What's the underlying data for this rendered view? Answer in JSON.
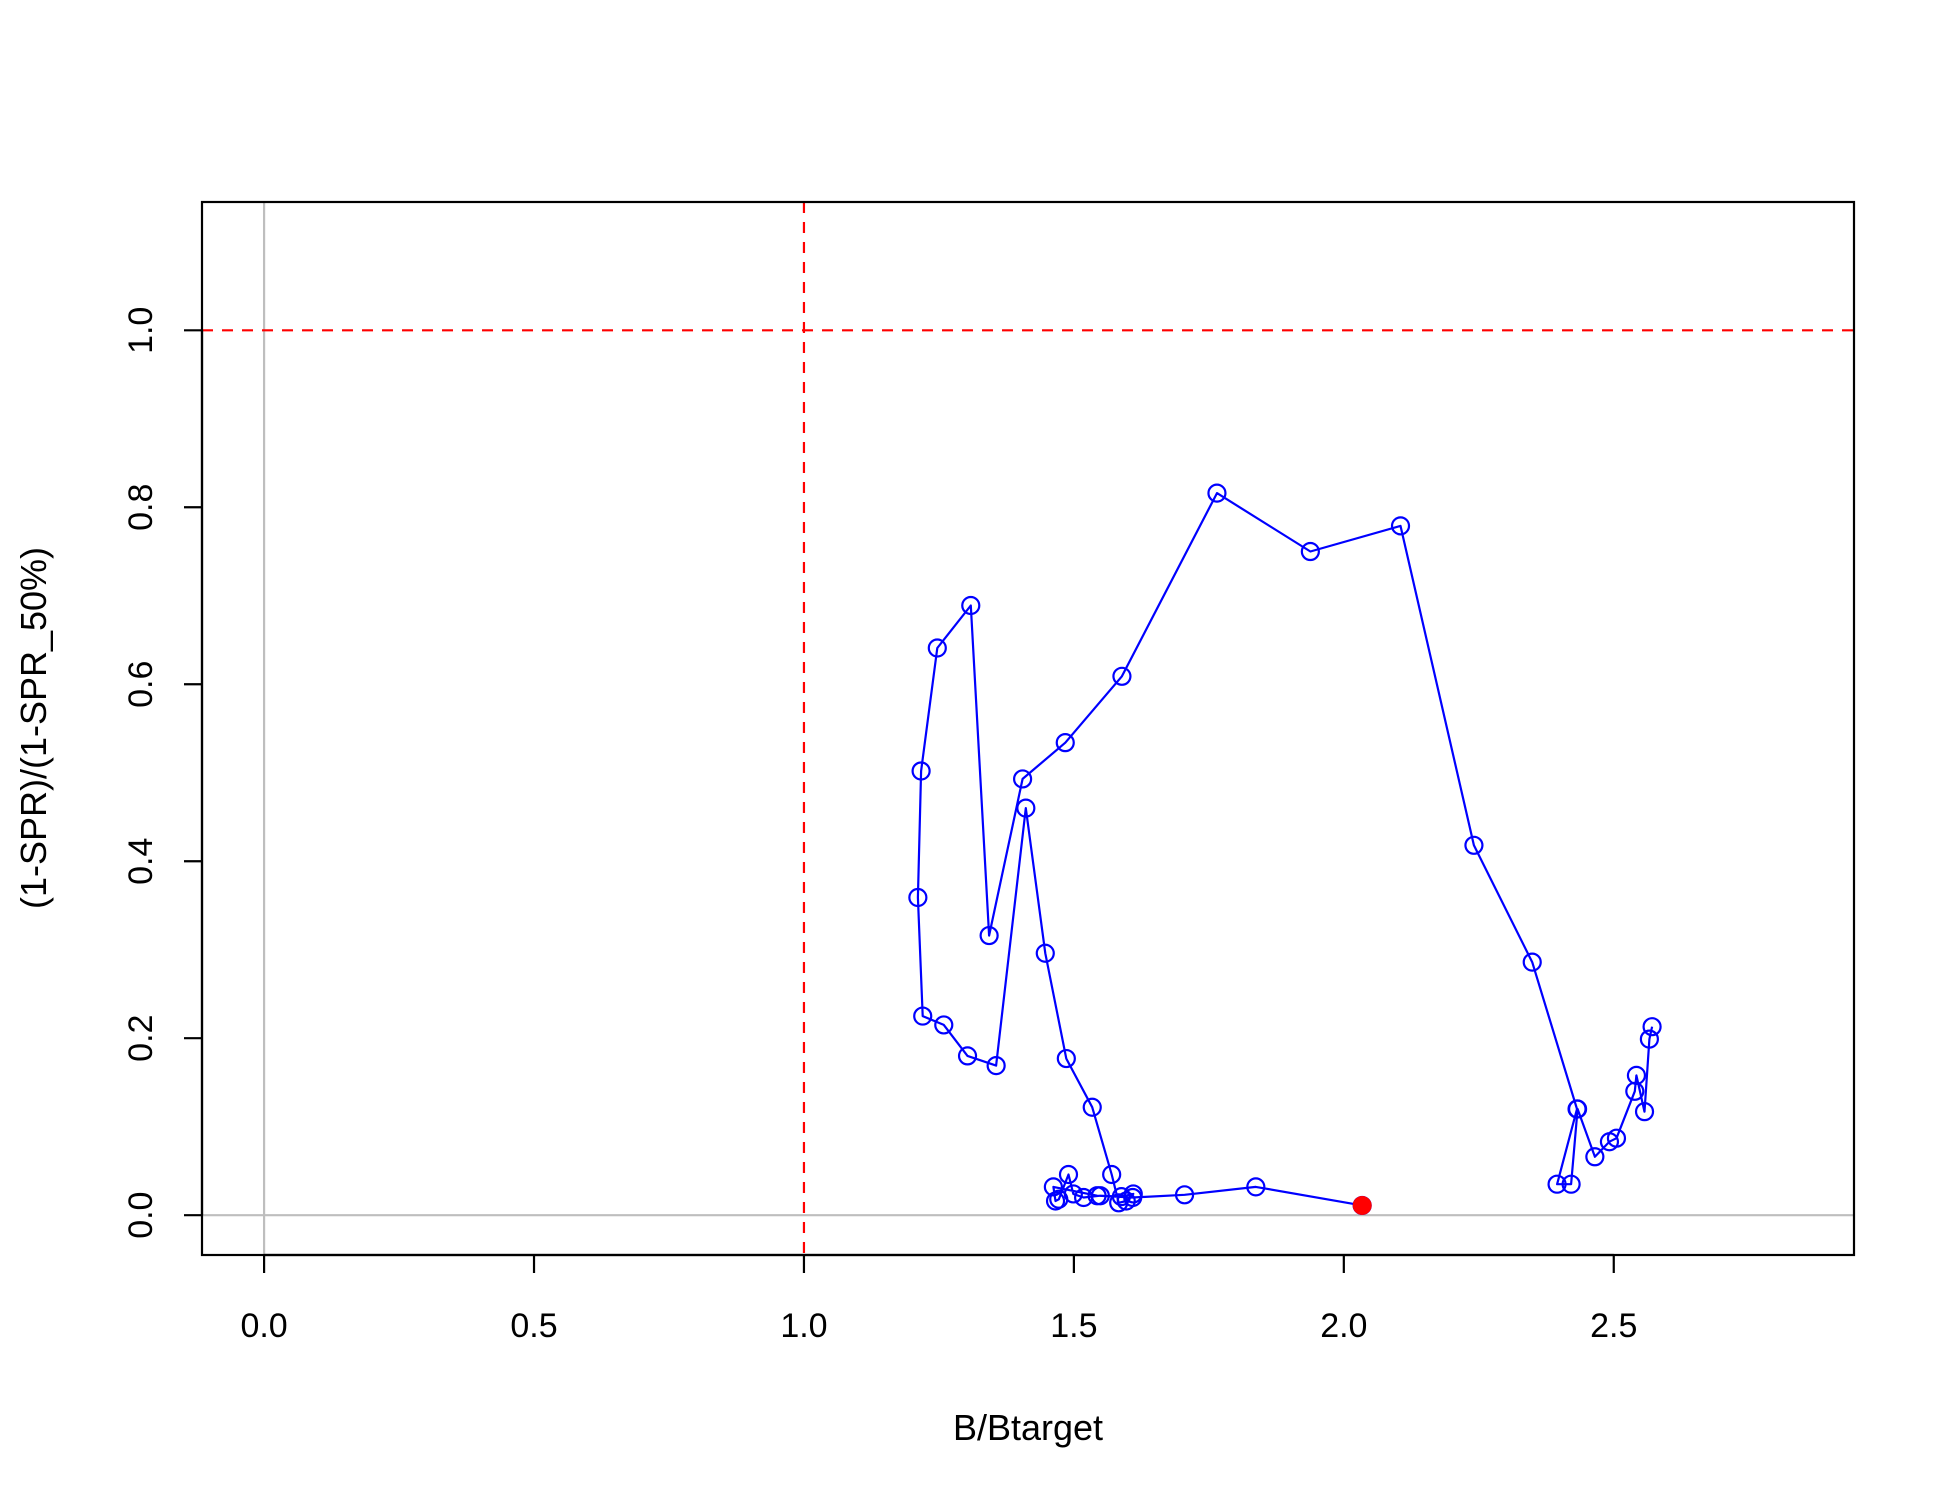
{
  "chart_data": {
    "type": "line",
    "title": "",
    "xlabel": "B/Btarget",
    "ylabel": "(1-SPR)/(1-SPR_50%)",
    "xlim": [
      -0.115,
      2.945
    ],
    "ylim": [
      -0.045,
      1.145
    ],
    "x_ticks": [
      "0.0",
      "0.5",
      "1.0",
      "1.5",
      "2.0",
      "2.5"
    ],
    "y_ticks": [
      "0.0",
      "0.2",
      "0.4",
      "0.6",
      "0.8",
      "1.0"
    ],
    "reference_lines": {
      "vertical_dashed_x": 1.0,
      "horizontal_dashed_y": 1.0,
      "zero_x": 0.0,
      "zero_y": 0.0,
      "dashed_color": "#ff0000",
      "zero_color": "#bebebe"
    },
    "series": [
      {
        "color": "#0000ff",
        "marker": "open-circle",
        "x": [
          2.571,
          2.566,
          2.557,
          2.542,
          2.539,
          2.505,
          2.492,
          2.465,
          2.433,
          2.421,
          2.395,
          2.432,
          2.349,
          2.241,
          2.105,
          1.938,
          1.765,
          1.589,
          1.484,
          1.405,
          1.343,
          1.309,
          1.247,
          1.217,
          1.211,
          1.22,
          1.259,
          1.303,
          1.356,
          1.411,
          1.447,
          1.486,
          1.534,
          1.57,
          1.583,
          1.597,
          1.61,
          1.588,
          1.549,
          1.518,
          1.499,
          1.49,
          1.472,
          1.466,
          1.462,
          1.543,
          1.609,
          1.705,
          1.837,
          2.034
        ],
        "y": [
          0.213,
          0.199,
          0.117,
          0.158,
          0.14,
          0.087,
          0.083,
          0.066,
          0.12,
          0.035,
          0.035,
          0.12,
          0.286,
          0.418,
          0.779,
          0.75,
          0.816,
          0.609,
          0.534,
          0.493,
          0.316,
          0.689,
          0.641,
          0.502,
          0.359,
          0.225,
          0.215,
          0.18,
          0.169,
          0.46,
          0.296,
          0.177,
          0.122,
          0.046,
          0.014,
          0.016,
          0.024,
          0.021,
          0.022,
          0.02,
          0.024,
          0.046,
          0.018,
          0.016,
          0.032,
          0.022,
          0.02,
          0.023,
          0.032,
          0.011
        ]
      }
    ],
    "highlight_point": {
      "x": 2.034,
      "y": 0.011,
      "color": "#ff0000",
      "marker": "filled-circle"
    }
  }
}
